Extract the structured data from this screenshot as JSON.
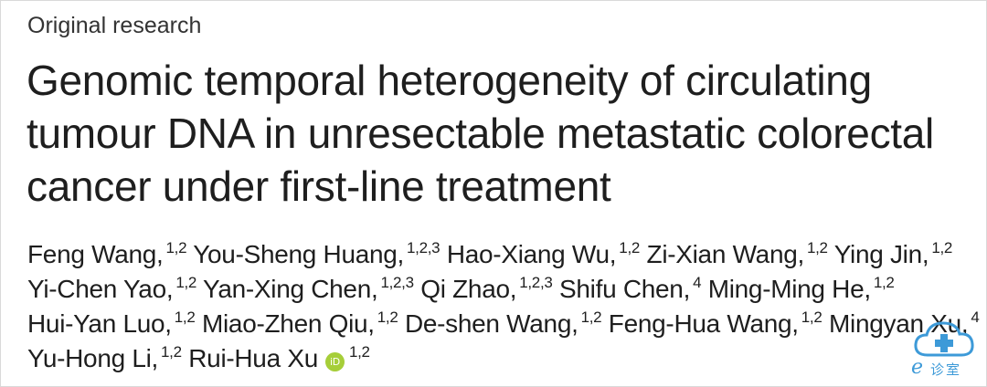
{
  "article": {
    "section": "Original research",
    "title_lines": [
      "Genomic temporal heterogeneity of circulating",
      "tumour DNA in unresectable metastatic colorectal",
      "cancer under first-line treatment"
    ],
    "authors": {
      "line1": [
        {
          "name": "Feng Wang,",
          "aff": "1,2"
        },
        {
          "name": "You-Sheng Huang,",
          "aff": "1,2,3"
        },
        {
          "name": "Hao-Xiang Wu,",
          "aff": "1,2"
        },
        {
          "name": "Zi-Xian Wang,",
          "aff": "1,2"
        },
        {
          "name": "Ying Jin,",
          "aff": "1,2"
        }
      ],
      "line2": [
        {
          "name": "Yi-Chen Yao,",
          "aff": "1,2"
        },
        {
          "name": "Yan-Xing Chen,",
          "aff": "1,2,3"
        },
        {
          "name": "Qi Zhao,",
          "aff": "1,2,3"
        },
        {
          "name": "Shifu Chen,",
          "aff": "4"
        },
        {
          "name": "Ming-Ming He,",
          "aff": "1,2"
        }
      ],
      "line3": [
        {
          "name": "Hui-Yan Luo,",
          "aff": "1,2"
        },
        {
          "name": "Miao-Zhen Qiu,",
          "aff": "1,2"
        },
        {
          "name": "De-shen Wang,",
          "aff": "1,2"
        },
        {
          "name": "Feng-Hua Wang,",
          "aff": "1,2"
        },
        {
          "name": "Mingyan Xu,",
          "aff": "4"
        }
      ],
      "line4": [
        {
          "name": "Yu-Hong Li,",
          "aff": "1,2"
        },
        {
          "name": "Rui-Hua Xu",
          "aff": "1,2"
        }
      ]
    },
    "orcid_badge": {
      "icon": "orcid-icon",
      "text": "iD",
      "color": "#a6ce39"
    }
  },
  "watermark": {
    "icon": "cloud-cross-icon",
    "letter": "e",
    "text": "诊室",
    "color": "#3d9ad8"
  }
}
